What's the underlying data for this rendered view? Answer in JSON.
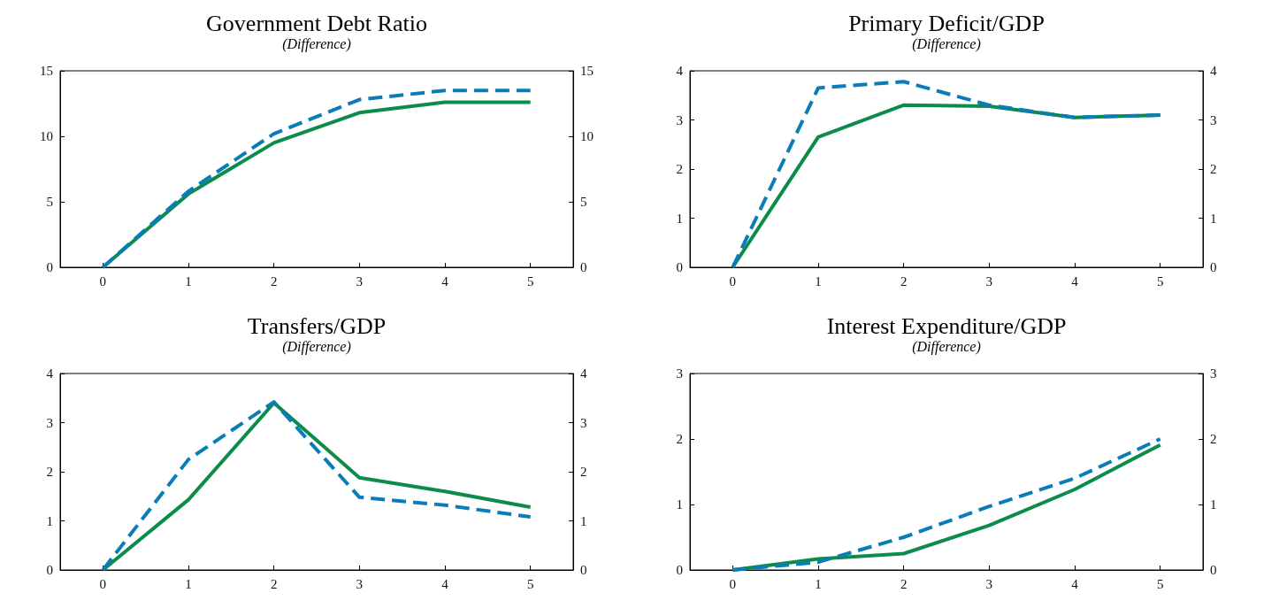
{
  "chart_data": [
    {
      "type": "line",
      "title": "Government Debt Ratio",
      "subtitle": "(Difference)",
      "x": [
        0,
        1,
        2,
        3,
        4,
        5
      ],
      "xlim": [
        -0.5,
        5.5
      ],
      "xticks": [
        0,
        1,
        2,
        3,
        4,
        5
      ],
      "ylim": [
        0,
        15
      ],
      "yticks": [
        0,
        5,
        10,
        15
      ],
      "y2lim": [
        0,
        15
      ],
      "y2ticks": [
        0,
        5,
        10,
        15
      ],
      "grid": false,
      "marker": "none",
      "series": [
        {
          "color": "#0b8c4a",
          "line_style": "solid",
          "values": [
            0,
            5.6,
            9.5,
            11.8,
            12.6,
            12.6
          ]
        },
        {
          "color": "#0a7cb8",
          "line_style": "dashed",
          "values": [
            0,
            5.8,
            10.2,
            12.8,
            13.5,
            13.5
          ]
        }
      ]
    },
    {
      "type": "line",
      "title": "Primary Deficit/GDP",
      "subtitle": "(Difference)",
      "x": [
        0,
        1,
        2,
        3,
        4,
        5
      ],
      "xlim": [
        -0.5,
        5.5
      ],
      "xticks": [
        0,
        1,
        2,
        3,
        4,
        5
      ],
      "ylim": [
        0,
        4
      ],
      "yticks": [
        0,
        1,
        2,
        3,
        4
      ],
      "y2lim": [
        0,
        4
      ],
      "y2ticks": [
        0,
        1,
        2,
        3,
        4
      ],
      "grid": false,
      "marker": "none",
      "series": [
        {
          "color": "#0b8c4a",
          "line_style": "solid",
          "values": [
            0,
            2.65,
            3.3,
            3.28,
            3.05,
            3.1
          ]
        },
        {
          "color": "#0a7cb8",
          "line_style": "dashed",
          "values": [
            0,
            3.65,
            3.78,
            3.3,
            3.05,
            3.1
          ]
        }
      ]
    },
    {
      "type": "line",
      "title": "Transfers/GDP",
      "subtitle": "(Difference)",
      "x": [
        0,
        1,
        2,
        3,
        4,
        5
      ],
      "xlim": [
        -0.5,
        5.5
      ],
      "xticks": [
        0,
        1,
        2,
        3,
        4,
        5
      ],
      "ylim": [
        0,
        4
      ],
      "yticks": [
        0,
        1,
        2,
        3,
        4
      ],
      "y2lim": [
        0,
        4
      ],
      "y2ticks": [
        0,
        1,
        2,
        3,
        4
      ],
      "grid": false,
      "marker": "none",
      "series": [
        {
          "color": "#0b8c4a",
          "line_style": "solid",
          "values": [
            0,
            1.43,
            3.4,
            1.88,
            1.6,
            1.28
          ]
        },
        {
          "color": "#0a7cb8",
          "line_style": "dashed",
          "values": [
            0,
            2.25,
            3.42,
            1.48,
            1.32,
            1.08
          ]
        }
      ]
    },
    {
      "type": "line",
      "title": "Interest Expenditure/GDP",
      "subtitle": "(Difference)",
      "x": [
        0,
        1,
        2,
        3,
        4,
        5
      ],
      "xlim": [
        -0.5,
        5.5
      ],
      "xticks": [
        0,
        1,
        2,
        3,
        4,
        5
      ],
      "ylim": [
        0,
        3
      ],
      "yticks": [
        0,
        1,
        2,
        3
      ],
      "y2lim": [
        0,
        3
      ],
      "y2ticks": [
        0,
        1,
        2,
        3
      ],
      "grid": false,
      "marker": "none",
      "series": [
        {
          "color": "#0b8c4a",
          "line_style": "solid",
          "values": [
            0,
            0.17,
            0.25,
            0.68,
            1.23,
            1.91
          ]
        },
        {
          "color": "#0a7cb8",
          "line_style": "dashed",
          "values": [
            0,
            0.12,
            0.5,
            0.97,
            1.4,
            2.0
          ]
        }
      ]
    }
  ]
}
